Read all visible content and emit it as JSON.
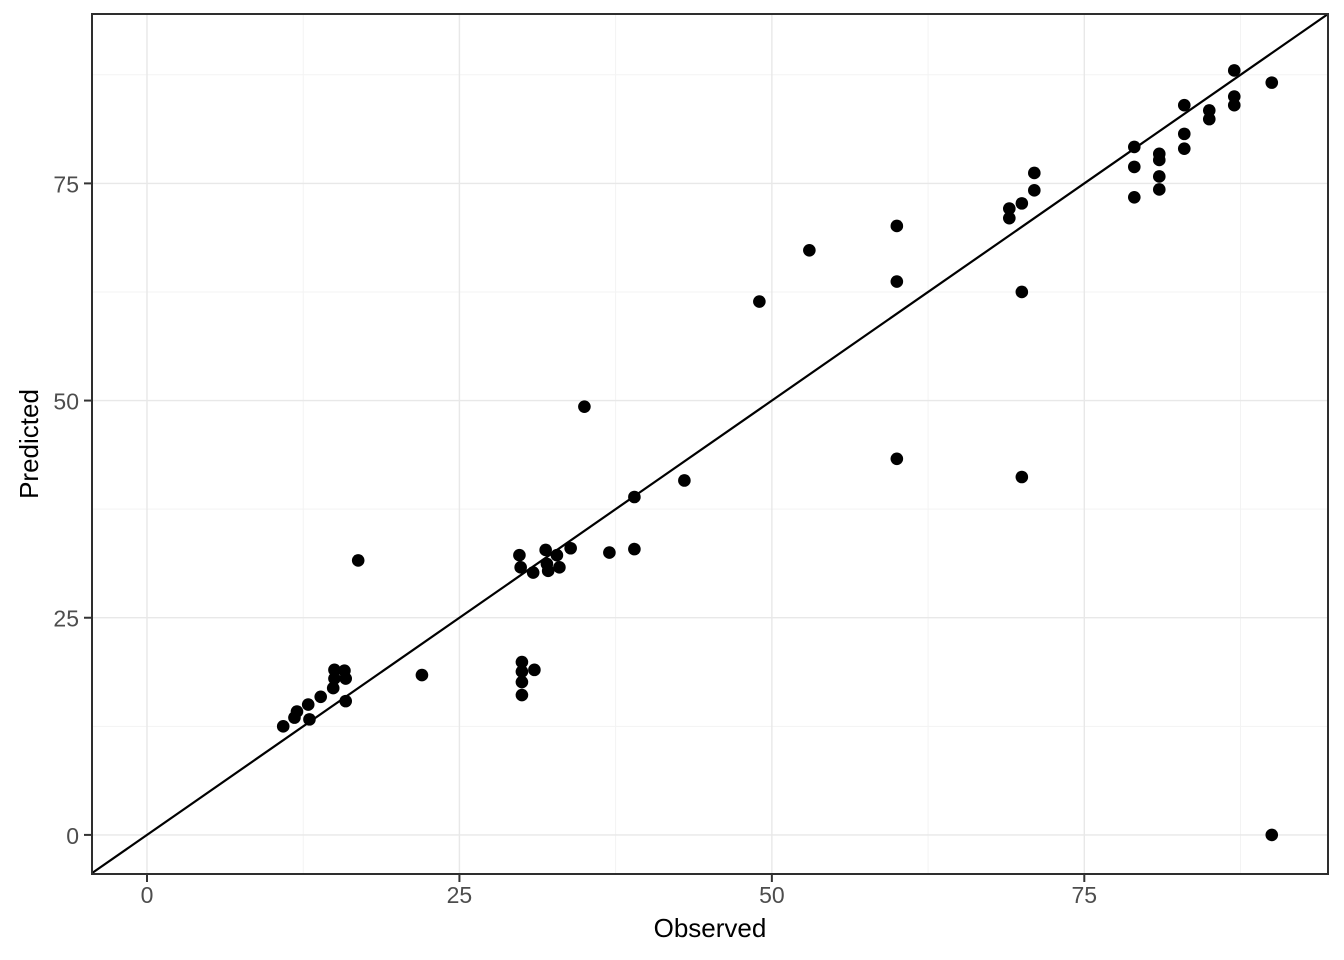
{
  "chart_data": {
    "type": "scatter",
    "title": "",
    "xlabel": "Observed",
    "ylabel": "Predicted",
    "x_ticks": [
      0,
      25,
      50,
      75
    ],
    "y_ticks": [
      0,
      25,
      50,
      75
    ],
    "xlim": [
      -4.4,
      94.5
    ],
    "ylim": [
      -4.5,
      94.5
    ],
    "grid": {
      "major": true,
      "minor": true
    },
    "legend": "none",
    "reference_line": {
      "type": "identity",
      "slope": 1,
      "intercept": 0
    },
    "points": [
      [
        10.9,
        12.5
      ],
      [
        11.8,
        13.5
      ],
      [
        12.0,
        14.2
      ],
      [
        12.9,
        15.0
      ],
      [
        13.0,
        13.3
      ],
      [
        13.9,
        15.9
      ],
      [
        14.9,
        16.9
      ],
      [
        15.0,
        18.0
      ],
      [
        15.0,
        19.0
      ],
      [
        15.8,
        18.9
      ],
      [
        15.9,
        18.0
      ],
      [
        15.9,
        15.4
      ],
      [
        16.9,
        31.6
      ],
      [
        22.0,
        18.4
      ],
      [
        29.8,
        32.2
      ],
      [
        29.9,
        30.8
      ],
      [
        30.9,
        30.2
      ],
      [
        31.9,
        32.8
      ],
      [
        32.0,
        31.2
      ],
      [
        32.1,
        30.4
      ],
      [
        32.8,
        32.2
      ],
      [
        33.0,
        30.8
      ],
      [
        33.9,
        33.0
      ],
      [
        30.0,
        19.9
      ],
      [
        30.0,
        18.8
      ],
      [
        30.0,
        17.6
      ],
      [
        30.0,
        16.1
      ],
      [
        31.0,
        19.0
      ],
      [
        35.0,
        49.3
      ],
      [
        37.0,
        32.5
      ],
      [
        39.0,
        32.9
      ],
      [
        39.0,
        38.9
      ],
      [
        43.0,
        40.8
      ],
      [
        49.0,
        61.4
      ],
      [
        53.0,
        67.3
      ],
      [
        60.0,
        70.1
      ],
      [
        60.0,
        63.7
      ],
      [
        60.0,
        43.3
      ],
      [
        69.0,
        72.1
      ],
      [
        69.0,
        71.0
      ],
      [
        70.0,
        72.7
      ],
      [
        70.0,
        62.5
      ],
      [
        71.0,
        76.2
      ],
      [
        71.0,
        74.2
      ],
      [
        70.0,
        41.2
      ],
      [
        79.0,
        79.2
      ],
      [
        79.0,
        76.9
      ],
      [
        79.0,
        73.4
      ],
      [
        81.0,
        78.4
      ],
      [
        81.0,
        77.7
      ],
      [
        81.0,
        75.8
      ],
      [
        81.0,
        74.3
      ],
      [
        83.0,
        84.0
      ],
      [
        83.0,
        80.7
      ],
      [
        83.0,
        79.0
      ],
      [
        85.0,
        83.4
      ],
      [
        85.0,
        82.4
      ],
      [
        87.0,
        88.0
      ],
      [
        87.0,
        85.0
      ],
      [
        87.0,
        84.0
      ],
      [
        90.0,
        86.6
      ],
      [
        90.0,
        0.0
      ]
    ]
  },
  "styles": {
    "background": "#ffffff",
    "point_color": "#000000",
    "line_color": "#000000",
    "grid_major_color": "#e8e8e8",
    "grid_minor_color": "#f3f3f3",
    "panel_border_color": "#2e2e2e",
    "tick_color": "#333333",
    "tick_label_color": "#4d4d4d",
    "axis_title_color": "#000000"
  }
}
